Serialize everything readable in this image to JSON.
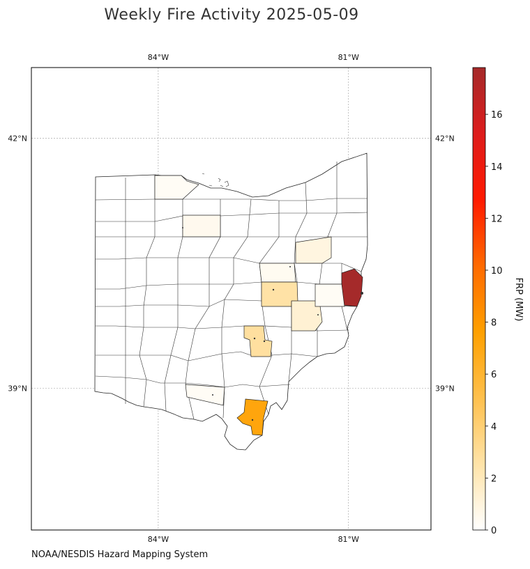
{
  "title": "Weekly Fire Activity 2025-05-09",
  "credit": "NOAA/NESDIS Hazard Mapping System",
  "map": {
    "region": "Ohio",
    "extent": {
      "lon": [
        -86,
        -79.7
      ],
      "lat": [
        37.3,
        42.85
      ]
    },
    "lon_ticks": [
      {
        "lon": -84,
        "label": "84°W"
      },
      {
        "lon": -81,
        "label": "81°W"
      }
    ],
    "lat_ticks": [
      {
        "lat": 42,
        "label": "42°N"
      },
      {
        "lat": 39,
        "label": "39°N"
      }
    ],
    "gridlines": true
  },
  "colorbar": {
    "label": "FRP (MW)",
    "min": 0,
    "max": 17.8,
    "ticks": [
      0,
      2,
      4,
      6,
      8,
      10,
      12,
      14,
      16
    ],
    "colors": [
      "#ffffff",
      "#ffe3a8",
      "#ffc04d",
      "#ffa000",
      "#ff6a00",
      "#ff1a00",
      "#dd1c1c",
      "#a52a2a"
    ]
  },
  "fire_counties": [
    {
      "frp": 0.3
    },
    {
      "frp": 0.5
    },
    {
      "frp": 0.3
    },
    {
      "frp": 0.4
    },
    {
      "frp": 2.6
    },
    {
      "frp": 1.3
    },
    {
      "frp": 0.9
    },
    {
      "frp": 17.8
    },
    {
      "frp": 2.8
    },
    {
      "frp": 0.3
    },
    {
      "frp": 7.2
    }
  ]
}
